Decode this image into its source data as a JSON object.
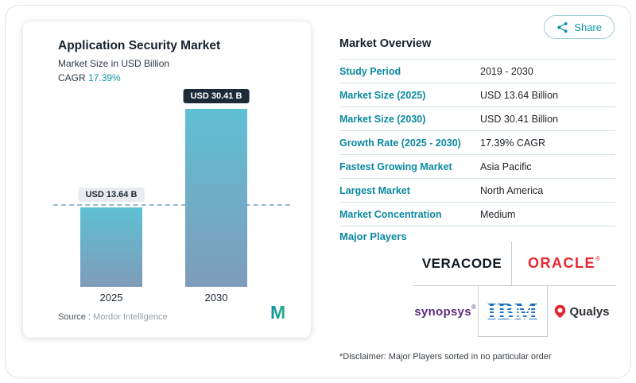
{
  "colors": {
    "accent_teal": "#0d96a6",
    "navy": "#1c2b3a",
    "bar_gradient_top": "#5fc0d3",
    "bar_gradient_bottom": "#7f9cba",
    "oracle_red": "#e8262d",
    "synopsys_purple": "#5a2d82",
    "ibm_blue": "#1f70c1",
    "qualys_red": "#e0282e"
  },
  "chart_data": {
    "type": "bar",
    "title": "Application Security Market",
    "subtitle": "Market Size in USD Billion",
    "categories": [
      "2025",
      "2030"
    ],
    "values": [
      13.64,
      30.41
    ],
    "value_labels": [
      "USD 13.64 B",
      "USD 30.41 B"
    ],
    "unit": "USD Billion",
    "cagr": "17.39%",
    "ylim": [
      0,
      32
    ],
    "grid": false,
    "dashed_reference_at": 13.64
  },
  "left_panel": {
    "cagr_prefix": "CAGR",
    "source_label": "Source :",
    "source_value": "Mordor Intelligence",
    "logo_icon": "mordor-intelligence-m-logo"
  },
  "share": {
    "label": "Share",
    "icon": "share-network-icon"
  },
  "overview": {
    "title": "Market Overview",
    "rows": [
      {
        "label": "Study Period",
        "value": "2019 - 2030"
      },
      {
        "label": "Market Size (2025)",
        "value": "USD 13.64 Billion"
      },
      {
        "label": "Market Size (2030)",
        "value": "USD 30.41 Billion"
      },
      {
        "label": "Growth Rate (2025 - 2030)",
        "value": "17.39% CAGR"
      },
      {
        "label": "Fastest Growing Market",
        "value": "Asia Pacific"
      },
      {
        "label": "Largest Market",
        "value": "North America"
      },
      {
        "label": "Market Concentration",
        "value": "Medium"
      }
    ],
    "major_players_label": "Major Players",
    "players": [
      {
        "name": "VERACODE"
      },
      {
        "name": "ORACLE",
        "reg": "®"
      },
      {
        "name": "synopsys",
        "reg": "®"
      },
      {
        "name": "IBM"
      },
      {
        "name": "Qualys"
      }
    ],
    "disclaimer": "*Disclaimer: Major Players sorted in no particular order"
  }
}
